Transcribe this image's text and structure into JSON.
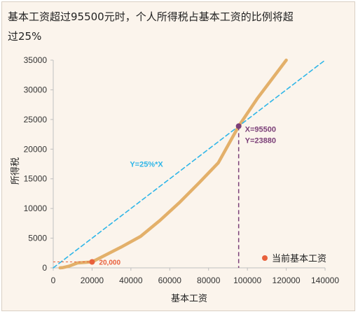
{
  "title": "基本工资超过95500元时，个人所得税占基本工资的比例将超过25%",
  "chart_data": {
    "type": "line",
    "xlabel": "基本工资",
    "ylabel": "所得税",
    "xlim": [
      0,
      140000
    ],
    "ylim": [
      0,
      35000
    ],
    "x_ticks": [
      "0",
      "20000",
      "40000",
      "60000",
      "80000",
      "100000",
      "120000",
      "140000"
    ],
    "y_ticks": [
      "0",
      "5000",
      "10000",
      "15000",
      "20000",
      "25000",
      "30000",
      "35000"
    ],
    "grid": false,
    "series": [
      {
        "kind": "tax-curve",
        "color": "#e3b06a",
        "style": "solid",
        "points": [
          [
            3500,
            0
          ],
          [
            5000,
            45
          ],
          [
            8000,
            275
          ],
          [
            12500,
            825
          ],
          [
            20000,
            1000
          ],
          [
            26000,
            2000
          ],
          [
            35000,
            3500
          ],
          [
            45000,
            5300
          ],
          [
            55000,
            8000
          ],
          [
            65000,
            11000
          ],
          [
            75000,
            14300
          ],
          [
            85000,
            17700
          ],
          [
            95500,
            23880
          ],
          [
            105000,
            28500
          ],
          [
            120000,
            35000
          ]
        ]
      },
      {
        "name": "Y=25%*X",
        "kind": "reference-line",
        "color": "#2fb6e8",
        "style": "dashed",
        "points": [
          [
            0,
            0
          ],
          [
            140000,
            35000
          ]
        ]
      }
    ],
    "annotations": {
      "intersection": {
        "x": 95500,
        "y": 23880,
        "label_x": "X=95500",
        "label_y": "Y=23880",
        "color": "#7b3f78"
      },
      "current": {
        "x": 20000,
        "y": 1000,
        "label": "20,000",
        "color": "#e8603c"
      }
    },
    "legend": {
      "label": "当前基本工资",
      "color": "#e8603c",
      "position": "bottom-right"
    }
  }
}
